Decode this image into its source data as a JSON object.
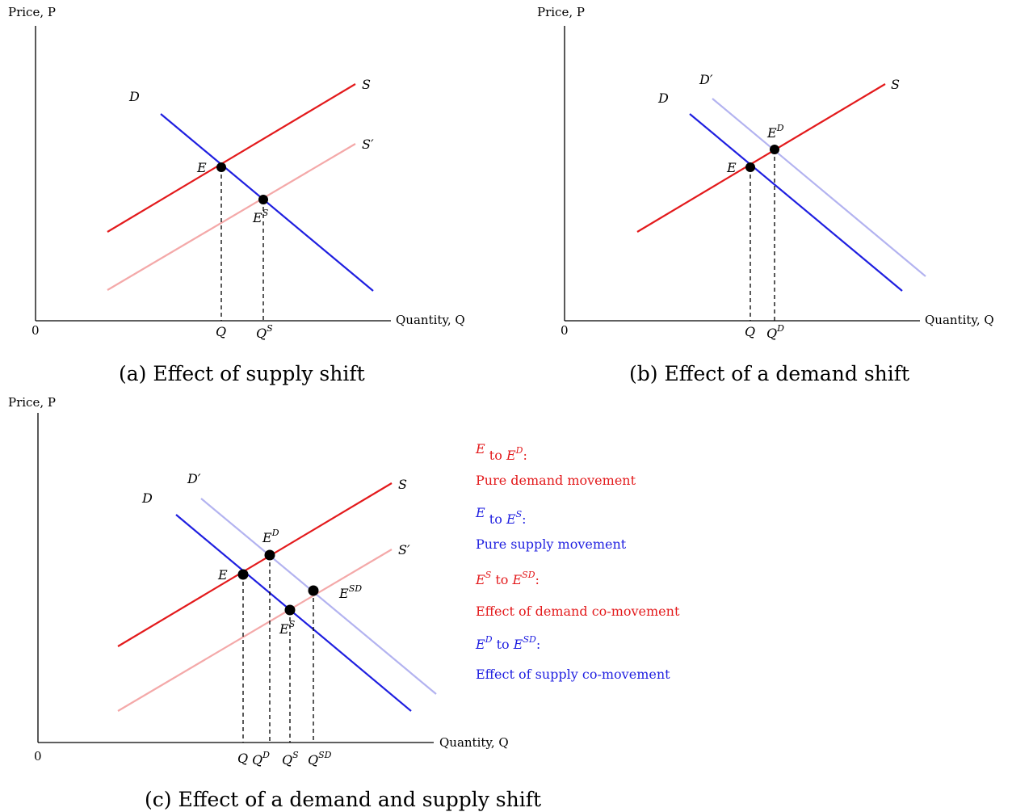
{
  "panel_a": {
    "y_axis_label": "Price, P",
    "x_axis_label": "Quantity, Q",
    "origin": "0",
    "curves": {
      "D": "D",
      "S": "S",
      "S_prime": "S′"
    },
    "points": {
      "E": "E",
      "ES": "E",
      "ES_sup": "S"
    },
    "ticks": {
      "Q": "Q",
      "QS": "Q",
      "QS_sup": "S"
    },
    "caption": "(a) Effect of supply shift"
  },
  "panel_b": {
    "y_axis_label": "Price, P",
    "x_axis_label": "Quantity, Q",
    "origin": "0",
    "curves": {
      "D": "D",
      "D_prime": "D′",
      "S": "S"
    },
    "points": {
      "E": "E",
      "ED": "E",
      "ED_sup": "D"
    },
    "ticks": {
      "Q": "Q",
      "QD": "Q",
      "QD_sup": "D"
    },
    "caption": "(b) Effect of a demand shift"
  },
  "panel_c": {
    "y_axis_label": "Price, P",
    "x_axis_label": "Quantity, Q",
    "origin": "0",
    "curves": {
      "D": "D",
      "D_prime": "D′",
      "S": "S",
      "S_prime": "S′"
    },
    "points": {
      "E": "E",
      "ED": "E",
      "ED_sup": "D",
      "ES": "E",
      "ES_sup": "S",
      "ESD": "E",
      "ESD_sup": "SD"
    },
    "ticks": {
      "Q": "Q",
      "QD": "Q",
      "QD_sup": "D",
      "QS": "Q",
      "QS_sup": "S",
      "QSD": "Q",
      "QSD_sup": "SD"
    },
    "caption": "(c) Effect of a demand and supply shift",
    "legend": [
      {
        "from": "E",
        "from_sup": "",
        "to": "E",
        "to_sup": "D",
        "desc": "Pure demand movement",
        "color": "#e31a1c"
      },
      {
        "from": "E",
        "from_sup": "",
        "to": "E",
        "to_sup": "S",
        "desc": "Pure supply movement",
        "color": "#1f1fe0"
      },
      {
        "from": "E",
        "from_sup": "S",
        "to": "E",
        "to_sup": "SD",
        "desc": "Effect of demand co-movement",
        "color": "#e31a1c"
      },
      {
        "from": "E",
        "from_sup": "D",
        "to": "E",
        "to_sup": "SD",
        "desc": "Effect of supply co-movement",
        "color": "#1f1fe0"
      }
    ],
    "legend_joiner": "to"
  }
}
